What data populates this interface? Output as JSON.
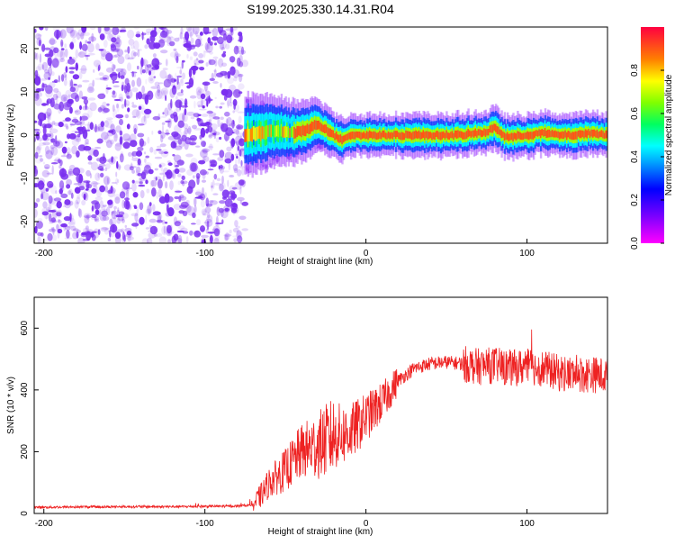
{
  "title": "S199.2025.330.14.31.R04",
  "colors": {
    "line": "#ee2222",
    "spectrogram_noise": "#7a2ff0",
    "frame": "#000000"
  },
  "chart_data": [
    {
      "type": "heatmap",
      "name": "spectrogram",
      "xlabel": "Height of straight line (km)",
      "ylabel": "Frequency (Hz)",
      "xlim": [
        -206,
        150
      ],
      "ylim": [
        -25,
        25
      ],
      "xticks": [
        -200,
        -100,
        0,
        100
      ],
      "yticks": [
        -20,
        -10,
        0,
        10,
        20
      ],
      "noise_region_x": [
        -206,
        -75
      ],
      "transition_region_x": [
        -75,
        -20
      ],
      "signal_ridge": {
        "x": [
          -75,
          -65,
          -55,
          -45,
          -35,
          -30,
          -25,
          -20,
          -15,
          -10,
          0,
          20,
          40,
          60,
          70,
          75,
          80,
          85,
          90,
          100,
          110,
          120,
          130,
          140,
          150
        ],
        "y": [
          0,
          0.5,
          1,
          0.5,
          1.5,
          2.5,
          1.5,
          0,
          -1,
          0,
          0,
          0,
          0,
          0,
          0.5,
          0.5,
          2,
          0,
          -0.5,
          0,
          0.5,
          0,
          0,
          0.5,
          0
        ]
      },
      "colorbar": {
        "label": "Normalized spectral amplitude",
        "range": [
          0,
          1
        ],
        "ticks": [
          0.0,
          0.2,
          0.4,
          0.6,
          0.8
        ]
      }
    },
    {
      "type": "line",
      "name": "snr",
      "xlabel": "Height of straight line (km)",
      "ylabel": "SNR (10 * v/v)",
      "xlim": [
        -206,
        150
      ],
      "ylim": [
        0,
        700
      ],
      "xticks": [
        -200,
        -100,
        0,
        100
      ],
      "yticks": [
        0,
        200,
        400,
        600
      ],
      "series": [
        {
          "name": "SNR",
          "x": [
            -206,
            -180,
            -150,
            -120,
            -100,
            -80,
            -70,
            -65,
            -60,
            -50,
            -40,
            -30,
            -20,
            -10,
            0,
            10,
            20,
            30,
            40,
            50,
            60,
            70,
            80,
            90,
            100,
            110,
            120,
            130,
            140,
            150
          ],
          "y": [
            20,
            21,
            22,
            22,
            23,
            24,
            28,
            60,
            100,
            140,
            200,
            220,
            250,
            260,
            310,
            360,
            430,
            470,
            485,
            490,
            485,
            475,
            480,
            470,
            475,
            470,
            455,
            450,
            450,
            445
          ]
        }
      ]
    }
  ]
}
